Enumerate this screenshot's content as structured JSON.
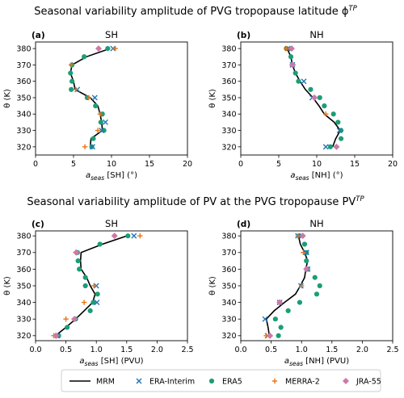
{
  "figure": {
    "title_top": "Seasonal variability amplitude of PVG tropopause latitude ϕ",
    "title_top_sup": "TP",
    "title_bottom": "Seasonal variability amplitude of PV at the PVG tropopause PV",
    "title_bottom_sup": "TP"
  },
  "colors": {
    "MRM": "#000000",
    "ERA-Interim": "#1f77b4",
    "ERA5": "#1a9e77",
    "MERRA-2": "#e8741a",
    "JRA-55": "#cc79a7"
  },
  "legend": {
    "entries": [
      "MRM",
      "ERA-Interim",
      "ERA5",
      "MERRA-2",
      "JRA-55"
    ],
    "placement": "bottom-center"
  },
  "chart_data": [
    {
      "type": "scatter",
      "panel": "(a)",
      "title": "SH",
      "xlabel_main": "a",
      "xlabel_sub": "seas",
      "xlabel_rest": " [SH] (°)",
      "ylabel": "θ (K)",
      "xlim": [
        0,
        20
      ],
      "ylim": [
        315,
        384
      ],
      "xticks": [
        "0",
        "5",
        "10",
        "15",
        "20"
      ],
      "yticks": [
        "320",
        "330",
        "340",
        "350",
        "360",
        "370",
        "380"
      ],
      "theta": [
        320,
        325,
        330,
        335,
        340,
        345,
        350,
        355,
        360,
        365,
        370,
        375,
        380
      ],
      "series": [
        {
          "name": "MRM",
          "x": [
            7.2,
            7.3,
            8.8,
            8.7,
            8.5,
            8.2,
            7.2,
            5.2,
            5.0,
            4.6,
            4.8,
            6.7,
            9.8
          ]
        },
        {
          "name": "ERA-Interim",
          "x": [
            7.5,
            null,
            8.7,
            9.2,
            null,
            null,
            7.8,
            5.5,
            null,
            null,
            null,
            null,
            10.2
          ]
        },
        {
          "name": "ERA5",
          "x": [
            7.4,
            7.6,
            9.0,
            8.6,
            8.8,
            7.9,
            6.8,
            4.7,
            4.8,
            4.6,
            4.8,
            6.4,
            9.5
          ]
        },
        {
          "name": "MERRA-2",
          "x": [
            6.5,
            null,
            8.2,
            null,
            8.5,
            null,
            7.0,
            5.3,
            null,
            null,
            4.7,
            null,
            10.5
          ]
        },
        {
          "name": "JRA-55",
          "x": [
            null,
            null,
            null,
            null,
            null,
            null,
            null,
            null,
            null,
            null,
            null,
            null,
            8.3
          ]
        }
      ]
    },
    {
      "type": "scatter",
      "panel": "(b)",
      "title": "NH",
      "xlabel_main": "a",
      "xlabel_sub": "seas",
      "xlabel_rest": " [NH] (°)",
      "ylabel": "θ (K)",
      "xlim": [
        0,
        20
      ],
      "ylim": [
        315,
        384
      ],
      "xticks": [
        "0",
        "5",
        "10",
        "15",
        "20"
      ],
      "yticks": [
        "320",
        "330",
        "340",
        "350",
        "360",
        "370",
        "380"
      ],
      "theta": [
        320,
        325,
        330,
        335,
        340,
        345,
        350,
        355,
        360,
        365,
        370,
        375,
        380
      ],
      "series": [
        {
          "name": "MRM",
          "x": [
            12.1,
            12.5,
            13.1,
            12.3,
            11.0,
            10.3,
            9.5,
            8.5,
            7.8,
            7.2,
            6.8,
            6.6,
            6.1
          ]
        },
        {
          "name": "ERA-Interim",
          "x": [
            11.2,
            null,
            13.0,
            null,
            null,
            null,
            9.4,
            null,
            8.3,
            null,
            6.8,
            null,
            6.2
          ]
        },
        {
          "name": "ERA5",
          "x": [
            11.8,
            13.2,
            13.2,
            12.8,
            12.2,
            11.0,
            10.4,
            9.2,
            7.6,
            7.2,
            6.8,
            6.6,
            6.0
          ]
        },
        {
          "name": "MERRA-2",
          "x": [
            null,
            null,
            null,
            null,
            11.2,
            null,
            9.6,
            null,
            null,
            null,
            6.9,
            null,
            6.0
          ]
        },
        {
          "name": "JRA-55",
          "x": [
            12.6,
            null,
            null,
            null,
            null,
            null,
            9.7,
            null,
            null,
            null,
            6.8,
            null,
            6.7
          ]
        }
      ]
    },
    {
      "type": "scatter",
      "panel": "(c)",
      "title": "SH",
      "xlabel_main": "a",
      "xlabel_sub": "seas",
      "xlabel_rest": " [SH] (PVU)",
      "ylabel": "θ (K)",
      "xlim": [
        0,
        2.5
      ],
      "ylim": [
        317,
        383
      ],
      "xticks": [
        "0.0",
        "0.5",
        "1.0",
        "1.5",
        "2.0",
        "2.5"
      ],
      "yticks": [
        "320",
        "330",
        "340",
        "350",
        "360",
        "370",
        "380"
      ],
      "theta": [
        320,
        325,
        330,
        335,
        340,
        345,
        350,
        355,
        360,
        365,
        370,
        375,
        380
      ],
      "series": [
        {
          "name": "MRM",
          "x": [
            0.33,
            0.5,
            0.66,
            0.8,
            0.94,
            0.98,
            0.9,
            0.84,
            0.75,
            0.74,
            0.75,
            1.1,
            1.5
          ]
        },
        {
          "name": "ERA-Interim",
          "x": [
            0.36,
            null,
            null,
            null,
            1.01,
            null,
            1.0,
            null,
            null,
            null,
            null,
            null,
            1.62
          ]
        },
        {
          "name": "ERA5",
          "x": [
            0.38,
            0.52,
            0.66,
            0.9,
            0.95,
            1.02,
            0.82,
            0.82,
            0.72,
            0.7,
            0.69,
            1.06,
            1.52
          ]
        },
        {
          "name": "MERRA-2",
          "x": [
            0.3,
            null,
            0.5,
            null,
            0.8,
            null,
            0.96,
            null,
            null,
            null,
            0.66,
            null,
            1.72
          ]
        },
        {
          "name": "JRA-55",
          "x": [
            0.34,
            null,
            0.64,
            null,
            null,
            null,
            null,
            null,
            null,
            null,
            0.67,
            null,
            1.3
          ]
        }
      ]
    },
    {
      "type": "scatter",
      "panel": "(d)",
      "title": "NH",
      "xlabel_main": "a",
      "xlabel_sub": "seas",
      "xlabel_rest": " [NH] (PVU)",
      "ylabel": "θ (K)",
      "xlim": [
        0,
        2.5
      ],
      "ylim": [
        317,
        383
      ],
      "xticks": [
        "0.0",
        "0.5",
        "1.0",
        "1.5",
        "2.0",
        "2.5"
      ],
      "yticks": [
        "320",
        "330",
        "340",
        "350",
        "360",
        "370",
        "380"
      ],
      "theta": [
        320,
        325,
        330,
        335,
        340,
        345,
        350,
        355,
        360,
        365,
        370,
        375,
        380
      ],
      "series": [
        {
          "name": "MRM",
          "x": [
            0.47,
            0.45,
            0.42,
            0.55,
            0.72,
            0.9,
            0.98,
            1.05,
            1.07,
            1.1,
            1.05,
            0.98,
            0.95
          ]
        },
        {
          "name": "ERA-Interim",
          "x": [
            0.44,
            null,
            0.4,
            null,
            0.64,
            null,
            0.99,
            null,
            1.1,
            null,
            1.08,
            null,
            0.94
          ]
        },
        {
          "name": "ERA5",
          "x": [
            0.62,
            0.66,
            0.57,
            0.78,
            0.97,
            1.25,
            1.3,
            1.22,
            1.1,
            1.08,
            1.08,
            1.05,
            0.97
          ]
        },
        {
          "name": "MERRA-2",
          "x": [
            0.42,
            null,
            null,
            null,
            null,
            null,
            1.0,
            null,
            null,
            null,
            1.03,
            null,
            0.94
          ]
        },
        {
          "name": "JRA-55",
          "x": [
            0.48,
            null,
            null,
            null,
            0.64,
            null,
            null,
            null,
            1.08,
            null,
            null,
            null,
            1.02
          ]
        }
      ]
    }
  ]
}
